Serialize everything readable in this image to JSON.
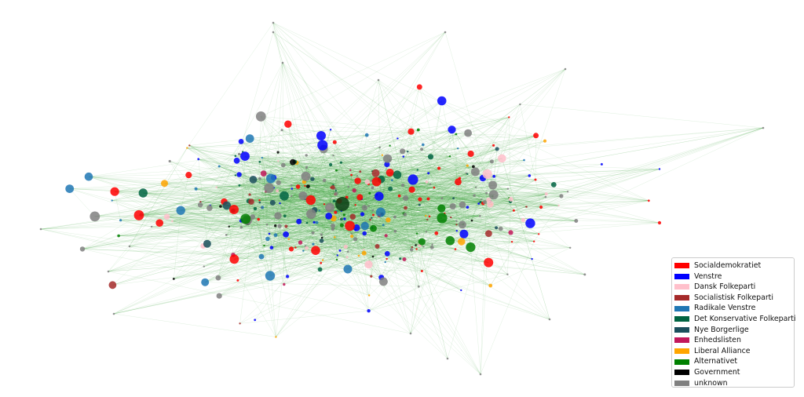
{
  "legend": {
    "items": [
      {
        "label": "Socialdemokratiet",
        "color": "#ff0000"
      },
      {
        "label": "Venstre",
        "color": "#0000ff"
      },
      {
        "label": "Dansk Folkeparti",
        "color": "#ffc0cb"
      },
      {
        "label": "Socialistisk Folkeparti",
        "color": "#a52a2a"
      },
      {
        "label": "Radikale Venstre",
        "color": "#1f77b4"
      },
      {
        "label": "Det Konservative Folkeparti",
        "color": "#006442"
      },
      {
        "label": "Nye Borgerlige",
        "color": "#1b4f5c"
      },
      {
        "label": "Enhedslisten",
        "color": "#c2185b"
      },
      {
        "label": "Liberal Alliance",
        "color": "#ffa500"
      },
      {
        "label": "Alternativet",
        "color": "#008000"
      },
      {
        "label": "Government",
        "color": "#000000"
      },
      {
        "label": "unknown",
        "color": "#808080"
      }
    ]
  },
  "graph": {
    "edge_color": "#2ca02c"
  }
}
